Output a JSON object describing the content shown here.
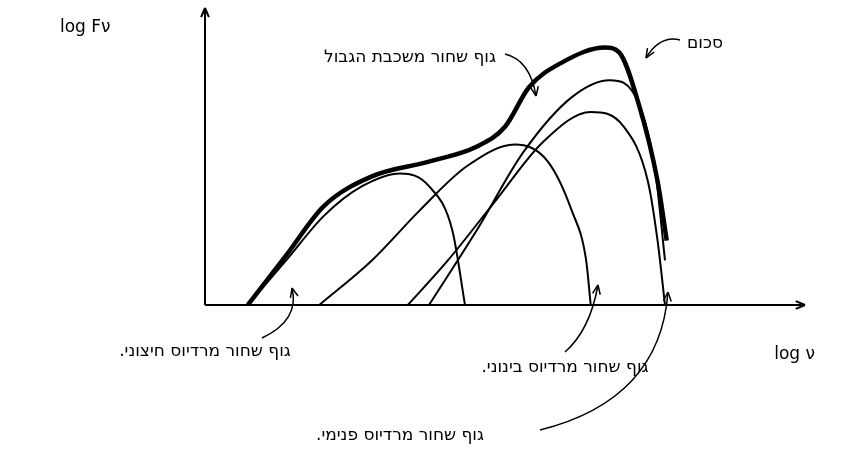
{
  "chart_data": {
    "type": "line",
    "x_label": "log ν",
    "y_label": "log Fν",
    "xlim": [
      0,
      105
    ],
    "ylim": [
      0,
      100
    ],
    "tick_labels": false,
    "grid": false,
    "series": [
      {
        "name": "גוף שחור מרדיוס חיצוני.",
        "color": "#000000",
        "line_style": "solid",
        "marker": "none",
        "x": [
          7.5,
          14.2,
          20.8,
          27.5,
          34.2,
          39.2,
          43.3,
          45.5
        ],
        "values": [
          0,
          15,
          30,
          40,
          44.3,
          40,
          25,
          0
        ]
      },
      {
        "name": "גוף שחור מרדיוס בינוני.",
        "color": "#000000",
        "line_style": "solid",
        "marker": "none",
        "x": [
          20,
          29.2,
          37.5,
          45.8,
          54.2,
          60,
          64.2,
          66.7,
          67.5
        ],
        "values": [
          0,
          15,
          31.7,
          46.7,
          54,
          48.3,
          31.7,
          15,
          0
        ]
      },
      {
        "name": "גוף שחור מרדיוס פנימי.",
        "color": "#000000",
        "line_style": "solid",
        "marker": "none",
        "x": [
          35.5,
          42.5,
          50.8,
          59.2,
          67.5,
          73.3,
          77.5,
          79.2,
          80.5
        ],
        "values": [
          0,
          15,
          35,
          55,
          65,
          60,
          41.7,
          21.7,
          0
        ]
      },
      {
        "name": "גוף שחור משכבת הגבול",
        "color": "#000000",
        "line_style": "solid",
        "marker": "none",
        "x": [
          39.2,
          47.5,
          55.8,
          64.2,
          70.8,
          75.8,
          78.8,
          80.5
        ],
        "values": [
          0,
          25,
          51.7,
          70,
          75.7,
          68.3,
          45,
          15
        ]
      },
      {
        "name": "סכום",
        "color": "#000000",
        "line_style": "thick",
        "marker": "none",
        "x": [
          7.5,
          14.2,
          20.8,
          29.2,
          39.2,
          47.5,
          52.5,
          56.7,
          62.5,
          70,
          72.5,
          75.8,
          79.2,
          80.8
        ],
        "values": [
          0,
          16.7,
          33.3,
          43.3,
          48.3,
          53.3,
          60,
          73.3,
          81.7,
          86.7,
          85,
          68.3,
          41.7,
          21.7
        ]
      }
    ]
  }
}
